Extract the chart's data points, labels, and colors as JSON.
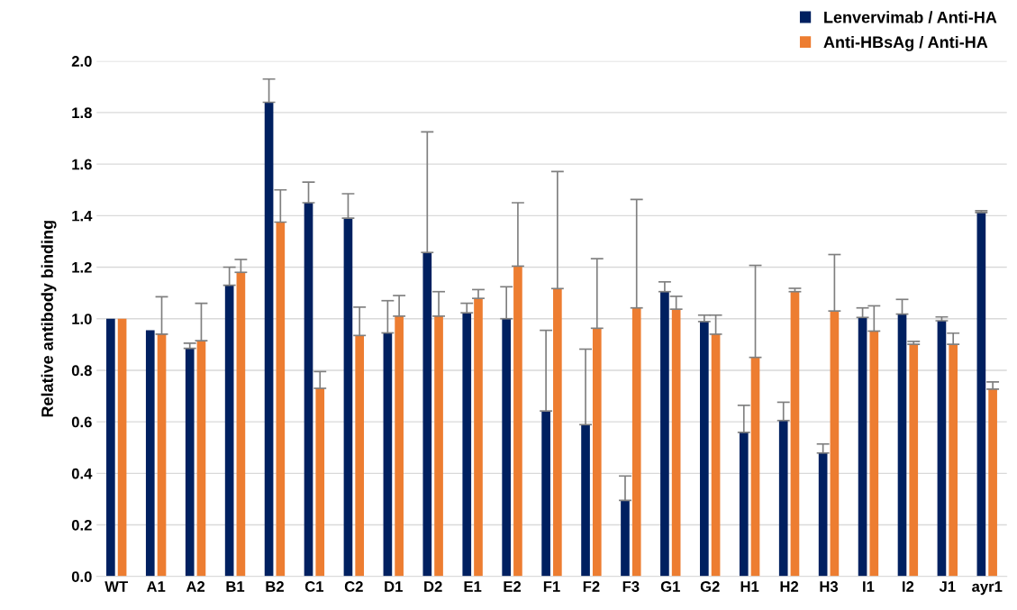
{
  "chart_data": {
    "type": "bar",
    "ylabel": "Relative antibody binding",
    "categories": [
      "WT",
      "A1",
      "A2",
      "B1",
      "B2",
      "C1",
      "C2",
      "D1",
      "D2",
      "E1",
      "E2",
      "F1",
      "F2",
      "F3",
      "G1",
      "G2",
      "H1",
      "H2",
      "H3",
      "I1",
      "I2",
      "J1",
      "ayr1"
    ],
    "series": [
      {
        "name": "Lenvervimab / Anti-HA",
        "color": "#002060",
        "values": [
          1.0,
          0.955,
          0.885,
          1.13,
          1.84,
          1.45,
          1.39,
          0.945,
          1.257,
          1.023,
          1.0,
          0.642,
          0.589,
          0.295,
          1.105,
          0.989,
          0.559,
          0.605,
          0.479,
          1.005,
          1.018,
          0.992,
          1.412
        ],
        "errors": [
          null,
          null,
          [
            0.885,
            0.905
          ],
          [
            1.13,
            1.2
          ],
          [
            1.84,
            1.93
          ],
          [
            1.45,
            1.53
          ],
          [
            1.39,
            1.485
          ],
          [
            0.945,
            1.07
          ],
          [
            1.257,
            1.725
          ],
          [
            1.023,
            1.06
          ],
          [
            1.0,
            1.124
          ],
          [
            0.642,
            0.955
          ],
          [
            0.589,
            0.882
          ],
          [
            0.295,
            0.39
          ],
          [
            1.105,
            1.143
          ],
          [
            0.989,
            1.014
          ],
          [
            0.559,
            0.664
          ],
          [
            0.605,
            0.676
          ],
          [
            0.479,
            0.514
          ],
          [
            1.005,
            1.042
          ],
          [
            1.018,
            1.075
          ],
          [
            0.992,
            1.007
          ],
          [
            1.412,
            1.419
          ]
        ]
      },
      {
        "name": "Anti-HBsAg / Anti-HA",
        "color": "#ed7d31",
        "values": [
          1.0,
          0.94,
          0.915,
          1.18,
          1.375,
          0.73,
          0.935,
          1.01,
          1.01,
          1.079,
          1.204,
          1.117,
          0.963,
          1.042,
          1.037,
          0.94,
          0.85,
          1.105,
          1.03,
          0.952,
          0.901,
          0.901,
          0.727
        ],
        "errors": [
          null,
          [
            0.94,
            1.085
          ],
          [
            0.915,
            1.06
          ],
          [
            1.18,
            1.23
          ],
          [
            1.375,
            1.5
          ],
          [
            0.73,
            0.795
          ],
          [
            0.935,
            1.045
          ],
          [
            1.01,
            1.09
          ],
          [
            1.01,
            1.105
          ],
          [
            1.079,
            1.113
          ],
          [
            1.204,
            1.45
          ],
          [
            1.117,
            1.571
          ],
          [
            0.963,
            1.233
          ],
          [
            1.042,
            1.463
          ],
          [
            1.037,
            1.087
          ],
          [
            0.94,
            1.014
          ],
          [
            0.85,
            1.207
          ],
          [
            1.105,
            1.118
          ],
          [
            1.03,
            1.249
          ],
          [
            0.952,
            1.05
          ],
          [
            0.901,
            0.912
          ],
          [
            0.901,
            0.944
          ],
          [
            0.727,
            0.755
          ]
        ]
      }
    ],
    "ylim": [
      0,
      2.0
    ],
    "yticks": [
      {
        "value": 0,
        "label": "0.0"
      },
      {
        "value": 0.2,
        "label": "0.2"
      },
      {
        "value": 0.4,
        "label": "0.4"
      },
      {
        "value": 0.6,
        "label": "0.6"
      },
      {
        "value": 0.8,
        "label": "0.8"
      },
      {
        "value": 1.0,
        "label": "1.0"
      },
      {
        "value": 1.2,
        "label": "1.2"
      },
      {
        "value": 1.4,
        "label": "1.4"
      },
      {
        "value": 1.6,
        "label": "1.6"
      },
      {
        "value": 1.8,
        "label": "1.8"
      },
      {
        "value": 2.0,
        "label": "2.0"
      }
    ],
    "grid": "y",
    "legend": "top right"
  }
}
